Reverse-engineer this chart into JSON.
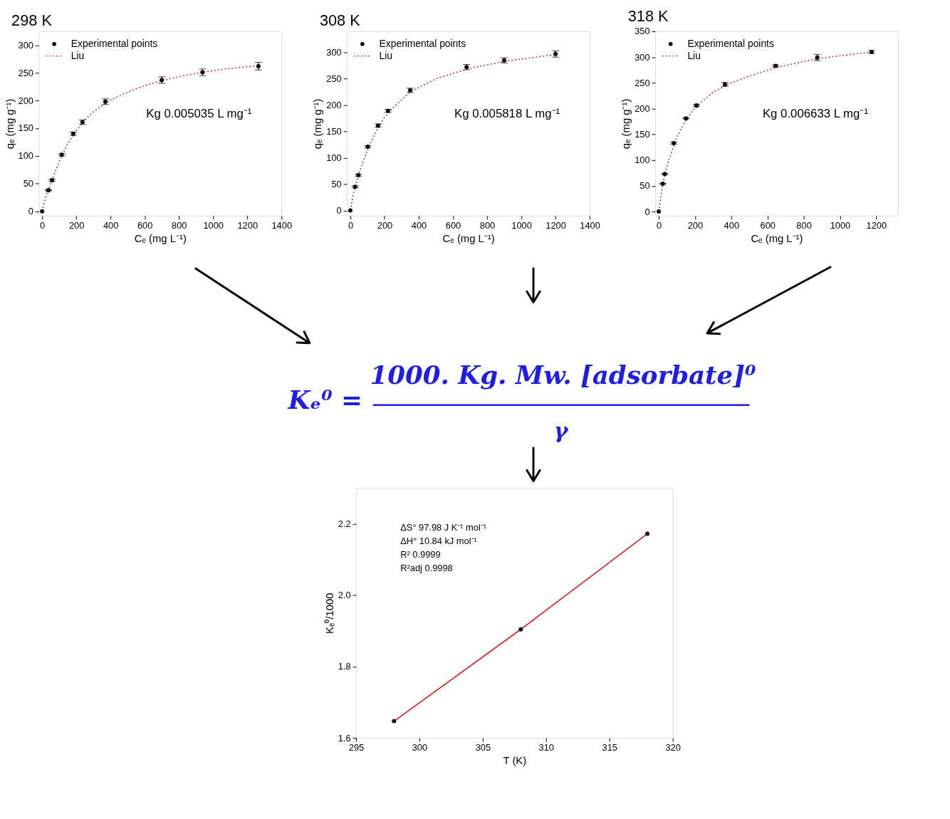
{
  "chart_data": [
    {
      "type": "scatter",
      "title": "298 K",
      "xlabel": "Cₑ (mg L⁻¹)",
      "ylabel": "qₑ (mg g⁻¹)",
      "xlim": [
        -20,
        1400
      ],
      "ylim": [
        -8,
        325
      ],
      "xticks": [
        0,
        200,
        400,
        600,
        800,
        1000,
        1200,
        1400
      ],
      "yticks": [
        0,
        50,
        100,
        150,
        200,
        250,
        300
      ],
      "legend": "top left",
      "annotations": [
        "Kg 0.005035 L mg⁻¹"
      ],
      "series": [
        {
          "name": "Experimental points",
          "type": "scatter",
          "color": "#111111",
          "marker": "circle",
          "x": [
            0,
            37,
            58,
            115,
            182,
            236,
            370,
            700,
            938,
            1265
          ],
          "values": [
            0,
            38,
            56,
            102,
            140,
            161,
            198,
            237,
            251,
            262
          ],
          "errors": [
            null,
            1,
            2,
            2,
            3,
            4,
            5,
            6,
            6,
            7
          ]
        },
        {
          "name": "Liu",
          "type": "line",
          "color": "#c0392b",
          "line_style": "dotted",
          "x": [
            0,
            20,
            50,
            100,
            150,
            200,
            250,
            300,
            400,
            500,
            600,
            700,
            800,
            900,
            1000,
            1100,
            1265
          ],
          "values": [
            0,
            25,
            50,
            90,
            122,
            146,
            165,
            180,
            201,
            215,
            227,
            236,
            243,
            249,
            254,
            258,
            263
          ]
        }
      ]
    },
    {
      "type": "scatter",
      "title": "308 K",
      "xlabel": "Cₑ (mg L⁻¹)",
      "ylabel": "qₑ (mg g⁻¹)",
      "xlim": [
        -20,
        1400
      ],
      "ylim": [
        -10,
        340
      ],
      "xticks": [
        0,
        200,
        400,
        600,
        800,
        1000,
        1200,
        1400
      ],
      "yticks": [
        0,
        50,
        100,
        150,
        200,
        250,
        300
      ],
      "legend": "top left",
      "annotations": [
        "Kg 0.005818 L mg⁻¹"
      ],
      "series": [
        {
          "name": "Experimental points",
          "type": "scatter",
          "color": "#111111",
          "marker": "circle",
          "x": [
            0,
            28,
            47,
            102,
            162,
            220,
            350,
            680,
            900,
            1200
          ],
          "values": [
            0,
            45,
            67,
            121,
            161,
            189,
            228,
            272,
            285,
            297
          ],
          "errors": [
            null,
            2,
            2,
            2,
            3,
            3,
            4,
            5,
            5,
            6
          ]
        },
        {
          "name": "Liu",
          "type": "line",
          "color": "#c0392b",
          "line_style": "dotted",
          "x": [
            0,
            20,
            50,
            100,
            150,
            200,
            250,
            350,
            500,
            700,
            900,
            1200
          ],
          "values": [
            0,
            35,
            70,
            115,
            150,
            177,
            195,
            225,
            250,
            270,
            283,
            296
          ]
        }
      ]
    },
    {
      "type": "scatter",
      "title": "318 K",
      "xlabel": "Cₑ (mg L⁻¹)",
      "ylabel": "qₑ (mg g⁻¹)",
      "xlim": [
        -20,
        1320
      ],
      "ylim": [
        -8,
        350
      ],
      "xticks": [
        0,
        200,
        400,
        600,
        800,
        1000,
        1200
      ],
      "yticks": [
        0,
        50,
        100,
        150,
        200,
        250,
        300,
        350
      ],
      "legend": "top left",
      "annotations": [
        "Kg 0.006633 L mg⁻¹"
      ],
      "series": [
        {
          "name": "Experimental points",
          "type": "scatter",
          "color": "#111111",
          "marker": "circle",
          "x": [
            0,
            22,
            33,
            83,
            150,
            208,
            365,
            645,
            875,
            1175
          ],
          "values": [
            0,
            54,
            73,
            133,
            181,
            206,
            247,
            283,
            299,
            310
          ],
          "errors": [
            null,
            1,
            1,
            2,
            1,
            2,
            4,
            2,
            6,
            3
          ]
        },
        {
          "name": "Liu",
          "type": "line",
          "color": "#c0392b",
          "line_style": "dotted",
          "x": [
            0,
            20,
            50,
            100,
            150,
            200,
            300,
            400,
            500,
            650,
            875,
            1175
          ],
          "values": [
            0,
            50,
            95,
            145,
            178,
            202,
            232,
            250,
            263,
            280,
            297,
            310
          ]
        }
      ]
    },
    {
      "type": "other",
      "annotations": [
        "Kₑ⁰ =",
        "1000. Kg. Mw. [adsorbate]⁰",
        "γ"
      ]
    },
    {
      "type": "scatter",
      "xlabel": "T (K)",
      "ylabel": "Kₑ⁰/1000",
      "xlim": [
        295,
        320
      ],
      "ylim": [
        1.6,
        2.3
      ],
      "xticks": [
        295,
        300,
        305,
        310,
        315,
        320
      ],
      "yticks": [
        1.6,
        1.8,
        {
          "value": 2.0,
          "label": "2.0"
        },
        2.2
      ],
      "annotations": [
        "ΔS°  97.98 J K⁻¹ mol⁻¹",
        "ΔH°  10.84 kJ mol⁻¹",
        "R²     0.9999",
        "R²adj  0.9998"
      ],
      "series": [
        {
          "type": "line",
          "color": "#d62020",
          "line_style": "solid",
          "x": [
            298,
            308,
            318
          ],
          "values": [
            1.647,
            1.904,
            2.172
          ]
        },
        {
          "type": "scatter",
          "color": "#111111",
          "marker": "circle",
          "x": [
            298,
            308,
            318
          ],
          "values": [
            1.647,
            1.904,
            2.172
          ]
        }
      ]
    }
  ]
}
